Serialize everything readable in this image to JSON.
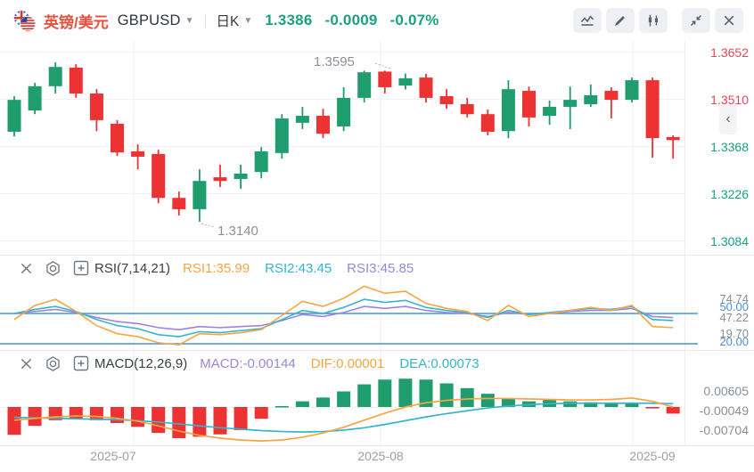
{
  "header": {
    "pair_name": "英镑/美元",
    "symbol": "GBPUSD",
    "period": "日K",
    "price": "1.3386",
    "change": "-0.0009",
    "change_pct": "-0.07%"
  },
  "toolbar": {
    "buttons": [
      "line-chart",
      "draw",
      "candlestick",
      "collapse",
      "close"
    ]
  },
  "colors": {
    "up": "#1f9d6e",
    "down": "#ec3232",
    "pair_red": "#e9503e",
    "price_green": "#1ba183",
    "axis_red": "#e2485a",
    "axis_green": "#1ba183",
    "orange": "#f6a544",
    "cyan": "#35b5cc",
    "purple": "#9a87dd",
    "ref_blue": "#4a90d9",
    "gray_label": "#8a8f98",
    "title_dark": "#3a3f46"
  },
  "rsi_panel": {
    "title": "RSI(7,14,21)",
    "values": [
      {
        "label": "RSI1:35.99",
        "color_key": "orange"
      },
      {
        "label": "RSI2:43.45",
        "color_key": "cyan"
      },
      {
        "label": "RSI3:45.85",
        "color_key": "purple"
      }
    ]
  },
  "macd_panel": {
    "title": "MACD(12,26,9)",
    "values": [
      {
        "label": "MACD:-0.00144",
        "color_key": "purple"
      },
      {
        "label": "DIF:0.00001",
        "color_key": "orange"
      },
      {
        "label": "DEA:0.00073",
        "color_key": "cyan"
      }
    ]
  },
  "chart_data": [
    {
      "type": "candlestick",
      "title": "GBPUSD daily candlestick",
      "x_ticks": [
        "2025-07",
        "2025-08",
        "2025-09"
      ],
      "y_axis_labels": [
        {
          "text": "1.3652",
          "color_key": "axis_red"
        },
        {
          "text": "1.3510",
          "color_key": "axis_red"
        },
        {
          "text": "1.3368",
          "color_key": "axis_green"
        },
        {
          "text": "1.3226",
          "color_key": "axis_green"
        },
        {
          "text": "1.3084",
          "color_key": "axis_green"
        }
      ],
      "y_range": [
        1.3084,
        1.3652
      ],
      "annotations": {
        "high": "1.3595",
        "low": "1.3140"
      },
      "candles_format": [
        "open",
        "high",
        "low",
        "close"
      ],
      "candles": [
        [
          1.3411,
          1.3518,
          1.3397,
          1.3507
        ],
        [
          1.3475,
          1.3558,
          1.3464,
          1.3548
        ],
        [
          1.3548,
          1.362,
          1.3526,
          1.3606
        ],
        [
          1.3604,
          1.3614,
          1.3513,
          1.3526
        ],
        [
          1.3526,
          1.3539,
          1.3413,
          1.3446
        ],
        [
          1.3435,
          1.3446,
          1.3338,
          1.3349
        ],
        [
          1.3352,
          1.3373,
          1.3298,
          1.3336
        ],
        [
          1.3344,
          1.3357,
          1.3196,
          1.3212
        ],
        [
          1.3212,
          1.3231,
          1.3159,
          1.3178
        ],
        [
          1.3178,
          1.3298,
          1.314,
          1.3263
        ],
        [
          1.3274,
          1.3312,
          1.3245,
          1.3263
        ],
        [
          1.3269,
          1.3312,
          1.3239,
          1.3285
        ],
        [
          1.329,
          1.3365,
          1.3271,
          1.3352
        ],
        [
          1.3347,
          1.3464,
          1.333,
          1.3451
        ],
        [
          1.3438,
          1.3486,
          1.3419,
          1.3459
        ],
        [
          1.3459,
          1.348,
          1.3392,
          1.3405
        ],
        [
          1.3427,
          1.3545,
          1.3413,
          1.3513
        ],
        [
          1.3513,
          1.3595,
          1.3499,
          1.359
        ],
        [
          1.3592,
          1.3595,
          1.3526,
          1.3545
        ],
        [
          1.355,
          1.3586,
          1.3538,
          1.3572
        ],
        [
          1.3574,
          1.3585,
          1.3499,
          1.3513
        ],
        [
          1.3518,
          1.3539,
          1.348,
          1.3494
        ],
        [
          1.3494,
          1.3513,
          1.3454,
          1.3464
        ],
        [
          1.3464,
          1.3478,
          1.34,
          1.3411
        ],
        [
          1.3413,
          1.3566,
          1.3392,
          1.3539
        ],
        [
          1.3534,
          1.3547,
          1.3427,
          1.3454
        ],
        [
          1.3459,
          1.3505,
          1.3432,
          1.3486
        ],
        [
          1.3486,
          1.3547,
          1.3419,
          1.3507
        ],
        [
          1.3494,
          1.3553,
          1.3486,
          1.3521
        ],
        [
          1.3534,
          1.3545,
          1.3451,
          1.3507
        ],
        [
          1.3507,
          1.3574,
          1.3499,
          1.3566
        ],
        [
          1.3566,
          1.3574,
          1.3333,
          1.3392
        ],
        [
          1.3395,
          1.34,
          1.333,
          1.3386
        ]
      ]
    },
    {
      "type": "line",
      "name": "RSI(7,14,21)",
      "series": [
        {
          "name": "RSI1",
          "color_key": "orange",
          "values": [
            44,
            58,
            64,
            52,
            38,
            30,
            27,
            21,
            19,
            30,
            29,
            31,
            34,
            48,
            62,
            57,
            65,
            77,
            70,
            72,
            60,
            55,
            52,
            43,
            58,
            47,
            50,
            53,
            56,
            53,
            58,
            37,
            36
          ]
        },
        {
          "name": "RSI2",
          "color_key": "cyan",
          "values": [
            50,
            54,
            57,
            52,
            44,
            38,
            35,
            29,
            27,
            32,
            31,
            33,
            35,
            44,
            53,
            50,
            56,
            64,
            61,
            63,
            56,
            53,
            51,
            46,
            53,
            49,
            51,
            53,
            55,
            54,
            57,
            44,
            43
          ]
        },
        {
          "name": "RSI3",
          "color_key": "purple",
          "values": [
            50,
            52,
            54,
            51,
            46,
            42,
            40,
            36,
            34,
            37,
            36,
            37,
            38,
            43,
            49,
            47,
            51,
            57,
            55,
            57,
            53,
            51,
            50,
            47,
            51,
            49,
            50,
            52,
            53,
            53,
            55,
            47,
            46
          ]
        }
      ],
      "ref_lines": [
        {
          "value": 50,
          "label": "50.00"
        },
        {
          "value": 20,
          "label": "20.00"
        }
      ],
      "axis_labels": [
        "74.74",
        "47.22",
        "19.70"
      ],
      "current": {
        "rsi1": "35.99",
        "rsi2": "43.45",
        "rsi3": "45.85"
      }
    },
    {
      "type": "macd",
      "name": "MACD(12,26,9)",
      "histogram": [
        -0.0059,
        -0.004,
        -0.0028,
        -0.0025,
        -0.0028,
        -0.0034,
        -0.0042,
        -0.0055,
        -0.0066,
        -0.0063,
        -0.0058,
        -0.0049,
        -0.0025,
        0.0002,
        0.0012,
        0.002,
        0.0033,
        0.0048,
        0.0058,
        0.006,
        0.0058,
        0.005,
        0.004,
        0.0028,
        0.0018,
        0.0012,
        0.0015,
        0.0012,
        0.001,
        0.0009,
        0.0007,
        -0.0003,
        -0.0014
      ],
      "dif": [
        -0.0028,
        -0.0024,
        -0.0021,
        -0.0019,
        -0.002,
        -0.0024,
        -0.003,
        -0.004,
        -0.0051,
        -0.006,
        -0.0066,
        -0.007,
        -0.0072,
        -0.007,
        -0.0064,
        -0.0055,
        -0.0043,
        -0.0028,
        -0.0013,
        0.0,
        0.0009,
        0.0014,
        0.0017,
        0.0018,
        0.0018,
        0.0017,
        0.0016,
        0.0015,
        0.0015,
        0.0016,
        0.0019,
        0.0012,
        0.0
      ],
      "dea": [
        -0.0022,
        -0.0023,
        -0.0024,
        -0.0025,
        -0.0026,
        -0.0027,
        -0.0029,
        -0.0032,
        -0.0036,
        -0.004,
        -0.0044,
        -0.0047,
        -0.005,
        -0.0052,
        -0.0053,
        -0.0052,
        -0.0049,
        -0.0044,
        -0.0037,
        -0.0029,
        -0.0021,
        -0.0014,
        -0.0008,
        -0.0002,
        0.0002,
        0.0005,
        0.0007,
        0.0008,
        0.0008,
        0.0008,
        0.0008,
        0.0008,
        0.0007
      ],
      "axis_labels": [
        "0.00605",
        "-0.00049",
        "-0.00704"
      ],
      "current": {
        "macd": "-0.00144",
        "dif": "0.00001",
        "dea": "0.00073"
      }
    }
  ]
}
